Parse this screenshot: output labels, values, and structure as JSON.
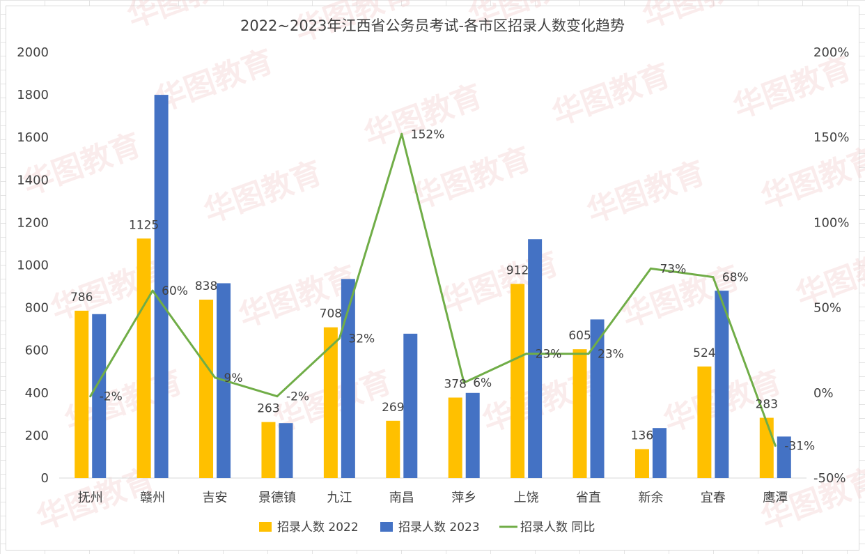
{
  "chart_data": {
    "type": "bar",
    "title": "2022~2023年江西省公务员考试-各市区招录人数变化趋势",
    "categories": [
      "抚州",
      "赣州",
      "吉安",
      "景德镇",
      "九江",
      "南昌",
      "萍乡",
      "上饶",
      "省直",
      "新余",
      "宜春",
      "鹰潭"
    ],
    "series": [
      {
        "name": "招录人数 2022",
        "kind": "bar",
        "axis": "left",
        "color": "#FFC000",
        "values": [
          786,
          1125,
          838,
          263,
          708,
          269,
          378,
          912,
          605,
          136,
          524,
          283
        ],
        "labels": [
          "786",
          "1125",
          "838",
          "263",
          "708",
          "269",
          "378",
          "912",
          "605",
          "136",
          "524",
          "283"
        ]
      },
      {
        "name": "招录人数 2023",
        "kind": "bar",
        "axis": "left",
        "color": "#4472C4",
        "values": [
          770,
          1800,
          915,
          258,
          935,
          678,
          400,
          1122,
          745,
          235,
          880,
          195
        ]
      },
      {
        "name": "招录人数 同比",
        "kind": "line",
        "axis": "right",
        "color": "#70AD47",
        "values": [
          -2,
          60,
          9,
          -2,
          32,
          152,
          6,
          23,
          23,
          73,
          68,
          -31
        ],
        "labels": [
          "-2%",
          "60%",
          "9%",
          "-2%",
          "32%",
          "152%",
          "6%",
          "23%",
          "23%",
          "73%",
          "68%",
          "-31%"
        ]
      }
    ],
    "yaxis_left": {
      "min": 0,
      "max": 2000,
      "ticks": [
        "0",
        "200",
        "400",
        "600",
        "800",
        "1000",
        "1200",
        "1400",
        "1600",
        "1800",
        "2000"
      ]
    },
    "yaxis_right": {
      "min": -50,
      "max": 200,
      "unit": "%",
      "ticks": [
        "-50%",
        "0%",
        "50%",
        "100%",
        "150%",
        "200%"
      ]
    },
    "legend": {
      "position": "bottom",
      "entries": [
        "招录人数 2022",
        "招录人数 2023",
        "招录人数 同比"
      ]
    },
    "grid": false
  },
  "watermark": {
    "text": "华图教育"
  }
}
